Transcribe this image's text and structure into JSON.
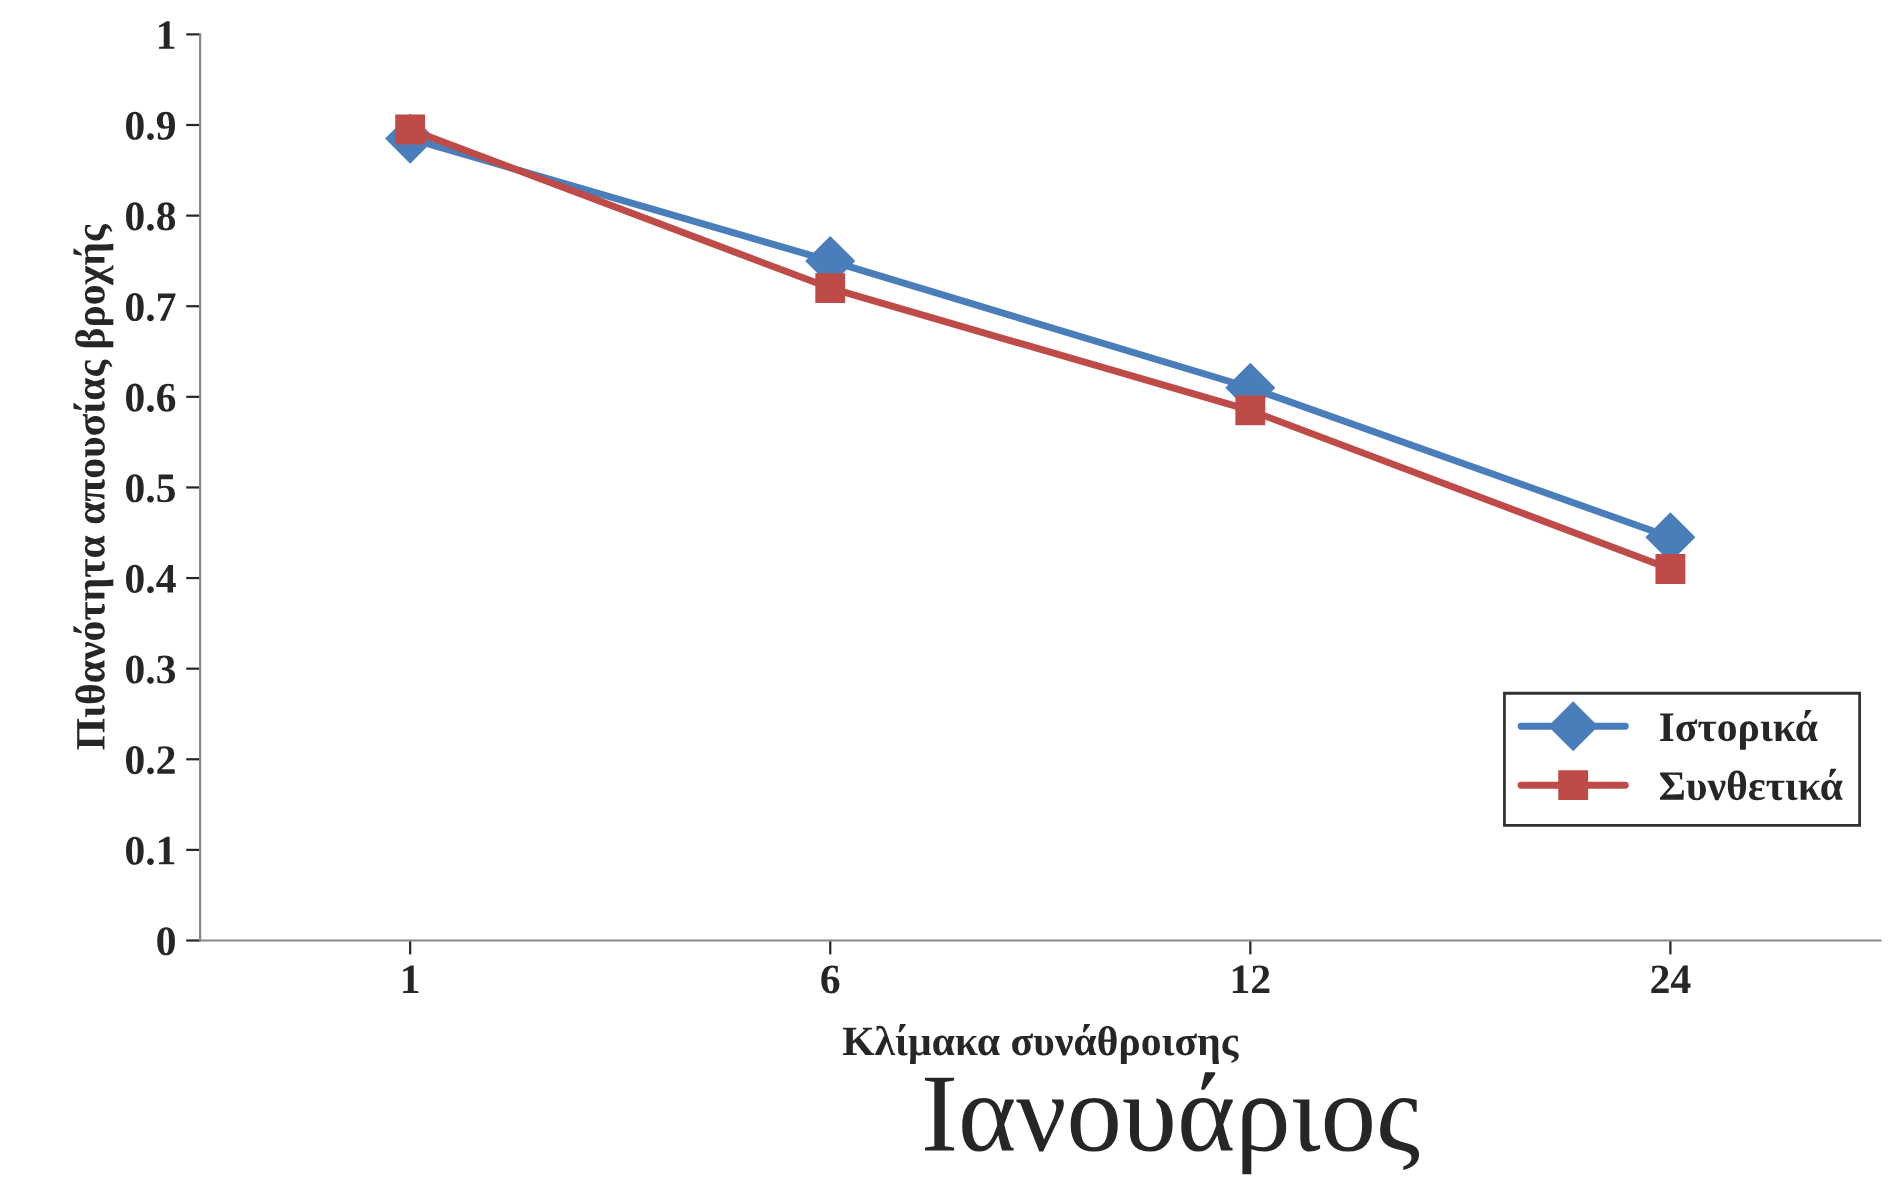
{
  "chart_data": {
    "type": "line",
    "title": "Ιανουάριος",
    "xlabel": "Κλίμακα συνάθροισης",
    "ylabel": "Πιθανότητα απουσίας βροχής",
    "categories": [
      "1",
      "6",
      "12",
      "24"
    ],
    "series": [
      {
        "name": "Ιστορικά",
        "color": "#4a7ebb",
        "marker": "diamond",
        "values": [
          0.885,
          0.75,
          0.61,
          0.445
        ]
      },
      {
        "name": "Συνθετικά",
        "color": "#be4b48",
        "marker": "square",
        "values": [
          0.895,
          0.72,
          0.585,
          0.41
        ]
      }
    ],
    "ylim": [
      0,
      1
    ],
    "yticks": [
      0,
      0.1,
      0.2,
      0.3,
      0.4,
      0.5,
      0.6,
      0.7,
      0.8,
      0.9,
      1
    ],
    "grid": false,
    "legend": "right"
  }
}
